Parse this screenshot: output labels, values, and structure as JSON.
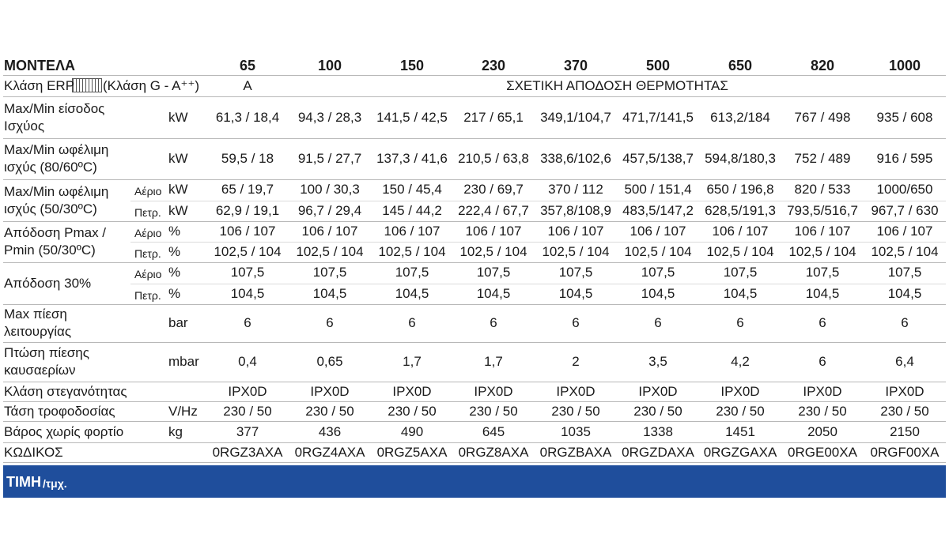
{
  "header": {
    "label": "ΜΟΝΤΕΛΑ",
    "models": [
      "65",
      "100",
      "150",
      "230",
      "370",
      "500",
      "650",
      "820",
      "1000"
    ]
  },
  "erp": {
    "label": "Κλάση ERP",
    "label_suffix": "(Κλάση G - A⁺⁺)",
    "first": "A",
    "rest": "ΣΧΕΤΙΚΗ ΑΠΟΔΟΣΗ ΘΕΡΜΟΤΗΤΑΣ"
  },
  "rows": [
    {
      "label": [
        "Max/Min είσοδος",
        "Ισχύος"
      ],
      "lines": [
        {
          "unit": "kW",
          "values": [
            "61,3 / 18,4",
            "94,3 / 28,3",
            "141,5 / 42,5",
            "217 / 65,1",
            "349,1/104,7",
            "471,7/141,5",
            "613,2/184",
            "767 / 498",
            "935 / 608"
          ]
        }
      ]
    },
    {
      "label": [
        "Max/Min ωφέλιμη",
        "ισχύς (80/60ºC)"
      ],
      "lines": [
        {
          "unit": "kW",
          "values": [
            "59,5 / 18",
            "91,5 / 27,7",
            "137,3 / 41,6",
            "210,5 / 63,8",
            "338,6/102,6",
            "457,5/138,7",
            "594,8/180,3",
            "752 / 489",
            "916 / 595"
          ]
        }
      ]
    },
    {
      "label": [
        "Max/Min ωφέλιμη",
        "ισχύς (50/30ºC)"
      ],
      "lines": [
        {
          "fuel": "Αέριο",
          "unit": "kW",
          "values": [
            "65 / 19,7",
            "100 / 30,3",
            "150 / 45,4",
            "230 / 69,7",
            "370 / 112",
            "500 / 151,4",
            "650 / 196,8",
            "820 / 533",
            "1000/650"
          ]
        },
        {
          "fuel": "Πετρ.",
          "unit": "kW",
          "values": [
            "62,9 / 19,1",
            "96,7 / 29,4",
            "145 / 44,2",
            "222,4 / 67,7",
            "357,8/108,9",
            "483,5/147,2",
            "628,5/191,3",
            "793,5/516,7",
            "967,7 / 630"
          ]
        }
      ]
    },
    {
      "label": [
        "Απόδοση Pmax /",
        "Pmin (50/30ºC)"
      ],
      "lines": [
        {
          "fuel": "Αέριο",
          "unit": "%",
          "values": [
            "106 / 107",
            "106 / 107",
            "106 / 107",
            "106 / 107",
            "106 / 107",
            "106 / 107",
            "106 / 107",
            "106 / 107",
            "106 / 107"
          ]
        },
        {
          "fuel": "Πετρ.",
          "unit": "%",
          "values": [
            "102,5 / 104",
            "102,5 / 104",
            "102,5 / 104",
            "102,5 / 104",
            "102,5 / 104",
            "102,5 / 104",
            "102,5 / 104",
            "102,5 / 104",
            "102,5 / 104"
          ]
        }
      ]
    },
    {
      "label": [
        "Απόδοση 30%"
      ],
      "lines": [
        {
          "fuel": "Αέριο",
          "unit": "%",
          "values": [
            "107,5",
            "107,5",
            "107,5",
            "107,5",
            "107,5",
            "107,5",
            "107,5",
            "107,5",
            "107,5"
          ]
        },
        {
          "fuel": "Πετρ.",
          "unit": "%",
          "values": [
            "104,5",
            "104,5",
            "104,5",
            "104,5",
            "104,5",
            "104,5",
            "104,5",
            "104,5",
            "104,5"
          ]
        }
      ]
    },
    {
      "label": [
        "Max πίεση",
        "λειτουργίας"
      ],
      "lines": [
        {
          "unit": "bar",
          "values": [
            "6",
            "6",
            "6",
            "6",
            "6",
            "6",
            "6",
            "6",
            "6"
          ]
        }
      ]
    },
    {
      "label": [
        "Πτώση πίεσης",
        "καυσαερίων"
      ],
      "lines": [
        {
          "unit": "mbar",
          "values": [
            "0,4",
            "0,65",
            "1,7",
            "1,7",
            "2",
            "3,5",
            "4,2",
            "6",
            "6,4"
          ]
        }
      ]
    },
    {
      "label": [
        "Κλάση στεγανότητας"
      ],
      "lines": [
        {
          "values": [
            "IPX0D",
            "IPX0D",
            "IPX0D",
            "IPX0D",
            "IPX0D",
            "IPX0D",
            "IPX0D",
            "IPX0D",
            "IPX0D"
          ]
        }
      ]
    },
    {
      "label": [
        "Τάση τροφοδοσίας"
      ],
      "lines": [
        {
          "unit": "V/Hz",
          "values": [
            "230 / 50",
            "230 / 50",
            "230 / 50",
            "230 / 50",
            "230 / 50",
            "230 / 50",
            "230 / 50",
            "230 / 50",
            "230 / 50"
          ]
        }
      ]
    },
    {
      "label": [
        "Βάρος χωρίς φορτίο"
      ],
      "lines": [
        {
          "unit": "kg",
          "values": [
            "377",
            "436",
            "490",
            "645",
            "1035",
            "1338",
            "1451",
            "2050",
            "2150"
          ]
        }
      ]
    },
    {
      "label": [
        "ΚΩΔΙΚΟΣ"
      ],
      "lines": [
        {
          "values": [
            "0RGZ3AXA",
            "0RGZ4AXA",
            "0RGZ5AXA",
            "0RGZ8AXA",
            "0RGZBAXA",
            "0RGZDAXA",
            "0RGZGAXA",
            "0RGE00XA",
            "0RGF00XA"
          ]
        }
      ]
    }
  ],
  "price": {
    "label": "ΤΙΜΗ",
    "suffix": "/τμχ."
  }
}
